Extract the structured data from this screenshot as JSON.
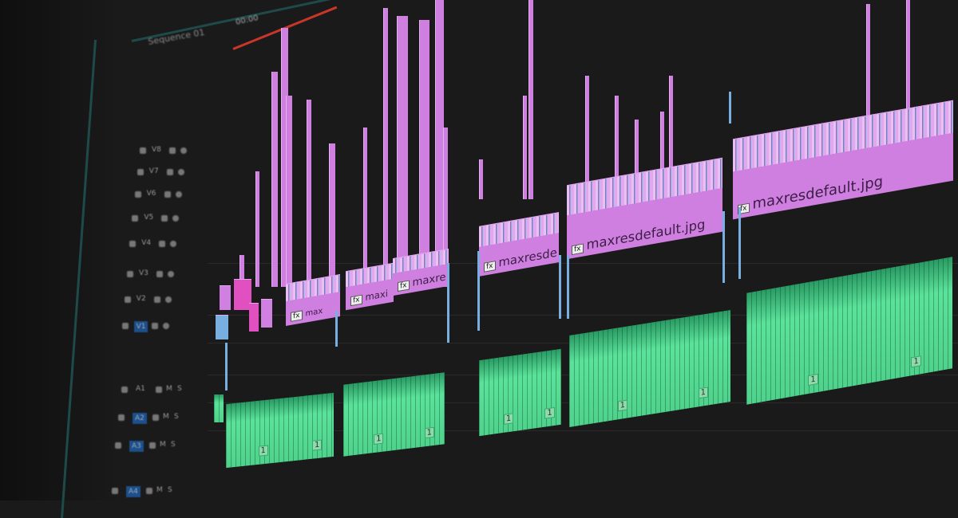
{
  "header": {
    "sequence_name": "Sequence 01",
    "timecode": "00:00"
  },
  "tracks": {
    "video": [
      "V8",
      "V7",
      "V6",
      "V5",
      "V4",
      "V3",
      "V2",
      "V1"
    ],
    "audio": [
      "A1",
      "A2",
      "A3",
      "A4"
    ],
    "audio_toggles": {
      "mute": "M",
      "solo": "S"
    },
    "target_v": "V1"
  },
  "clips": {
    "video": [
      {
        "label": "max",
        "fx": "fx"
      },
      {
        "label": "maxi",
        "fx": "fx"
      },
      {
        "label": "maxre",
        "fx": "fx"
      },
      {
        "label": "maxresde",
        "fx": "fx"
      },
      {
        "label": "maxresdefault.jpg",
        "fx": "fx"
      },
      {
        "label": "maxresdefault.jpg",
        "fx": "fx"
      }
    ],
    "audio_channel": "1"
  },
  "colors": {
    "video_clip": "#cf7fe0",
    "audio_clip": "#4fd28c",
    "playhead": "#c8362a",
    "track_target": "#1d4f8a",
    "panel_border": "#1f4a4a"
  }
}
